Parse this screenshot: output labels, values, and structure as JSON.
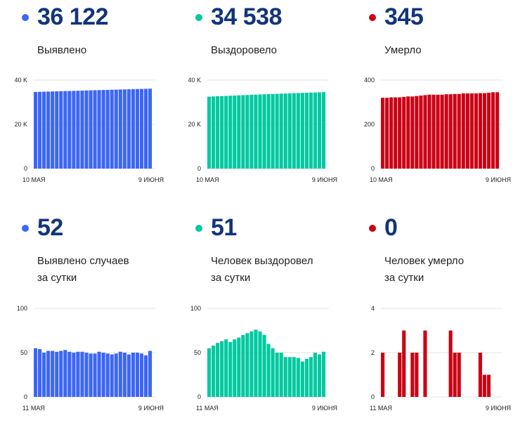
{
  "panels": [
    {
      "value": "36 122",
      "label": [
        "Выявлено"
      ],
      "color": "#3d66f5"
    },
    {
      "value": "34 538",
      "label": [
        "Выздоровело"
      ],
      "color": "#00c9a0"
    },
    {
      "value": "345",
      "label": [
        "Умерло"
      ],
      "color": "#cc0014"
    },
    {
      "value": "52",
      "label": [
        "Выявлено случаев",
        "за сутки"
      ],
      "color": "#3d66f5"
    },
    {
      "value": "51",
      "label": [
        "Человек выздоровел",
        "за сутки"
      ],
      "color": "#00c9a0"
    },
    {
      "value": "0",
      "label": [
        "Человек умерло",
        "за сутки"
      ],
      "color": "#cc0014"
    }
  ],
  "chart_data": [
    {
      "type": "bar",
      "color": "#3d66f5",
      "ylim": [
        0,
        40000
      ],
      "yticks": [
        {
          "v": 40000,
          "t": "40 K"
        },
        {
          "v": 20000,
          "t": "20 K"
        },
        {
          "v": 0,
          "t": "0"
        }
      ],
      "xlabels": [
        "10 МАЯ",
        "9 ИЮНЯ"
      ],
      "values": [
        34650,
        34700,
        34760,
        34810,
        34870,
        34920,
        34980,
        35030,
        35090,
        35140,
        35200,
        35250,
        35310,
        35360,
        35420,
        35470,
        35530,
        35580,
        35640,
        35690,
        35750,
        35800,
        35860,
        35910,
        35970,
        36020,
        36070,
        36122
      ]
    },
    {
      "type": "bar",
      "color": "#00c9a0",
      "ylim": [
        0,
        40000
      ],
      "yticks": [
        {
          "v": 40000,
          "t": "40 K"
        },
        {
          "v": 20000,
          "t": "20 K"
        },
        {
          "v": 0,
          "t": "0"
        }
      ],
      "xlabels": [
        "10 МАЯ",
        "9 ИЮНЯ"
      ],
      "values": [
        32500,
        32600,
        32700,
        32780,
        32860,
        32940,
        33020,
        33100,
        33180,
        33260,
        33340,
        33420,
        33500,
        33580,
        33650,
        33720,
        33800,
        33870,
        33940,
        34010,
        34080,
        34150,
        34220,
        34290,
        34360,
        34420,
        34480,
        34538
      ]
    },
    {
      "type": "bar",
      "color": "#cc0014",
      "ylim": [
        0,
        400
      ],
      "yticks": [
        {
          "v": 400,
          "t": "400"
        },
        {
          "v": 200,
          "t": "200"
        },
        {
          "v": 0,
          "t": "0"
        }
      ],
      "xlabels": [
        "10 МАЯ",
        "9 ИЮНЯ"
      ],
      "values": [
        320,
        320,
        322,
        322,
        322,
        324,
        326,
        326,
        328,
        330,
        332,
        334,
        334,
        334,
        334,
        336,
        336,
        337,
        337,
        340,
        340,
        340,
        340,
        341,
        341,
        343,
        345,
        345
      ]
    },
    {
      "type": "bar",
      "color": "#3d66f5",
      "ylim": [
        0,
        100
      ],
      "yticks": [
        {
          "v": 100,
          "t": "100"
        },
        {
          "v": 50,
          "t": "50"
        },
        {
          "v": 0,
          "t": "0"
        }
      ],
      "xlabels": [
        "11 МАЯ",
        "9 ИЮНЯ"
      ],
      "values": [
        55,
        54,
        50,
        52,
        52,
        51,
        52,
        53,
        51,
        50,
        51,
        51,
        50,
        49,
        49,
        51,
        50,
        49,
        48,
        49,
        51,
        50,
        48,
        50,
        50,
        49,
        47,
        52
      ]
    },
    {
      "type": "bar",
      "color": "#00c9a0",
      "ylim": [
        0,
        100
      ],
      "yticks": [
        {
          "v": 100,
          "t": "100"
        },
        {
          "v": 50,
          "t": "50"
        },
        {
          "v": 0,
          "t": "0"
        }
      ],
      "xlabels": [
        "11 МАЯ",
        "9 ИЮНЯ"
      ],
      "values": [
        55,
        58,
        61,
        63,
        65,
        62,
        65,
        67,
        70,
        72,
        74,
        76,
        74,
        70,
        60,
        55,
        50,
        50,
        45,
        45,
        45,
        44,
        40,
        43,
        45,
        50,
        48,
        51
      ]
    },
    {
      "type": "bar",
      "color": "#cc0014",
      "ylim": [
        0,
        4
      ],
      "yticks": [
        {
          "v": 4,
          "t": "4"
        },
        {
          "v": 2,
          "t": "2"
        },
        {
          "v": 0,
          "t": "0"
        }
      ],
      "xlabels": [
        "11 МАЯ",
        "9 ИЮНЯ"
      ],
      "values": [
        2,
        0,
        0,
        0,
        2,
        3,
        0,
        2,
        2,
        0,
        3,
        0,
        0,
        0,
        0,
        0,
        3,
        2,
        2,
        0,
        0,
        0,
        0,
        2,
        1,
        1,
        0,
        0
      ]
    }
  ]
}
